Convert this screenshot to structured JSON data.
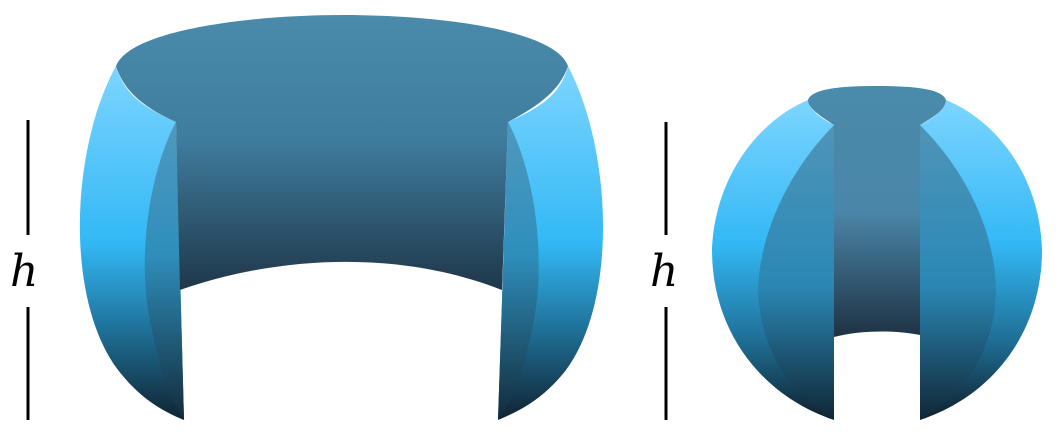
{
  "diagram": {
    "left_figure": {
      "height_label": "h"
    },
    "right_figure": {
      "height_label": "h"
    }
  },
  "colors": {
    "top_cap": "#4a8aab",
    "outer_light": "#7dd5ff",
    "outer_mid": "#33b8f5",
    "outer_dark": "#102331",
    "inner_top": "#4a8aab",
    "inner_bottom": "#203a4c",
    "rule": "#000000"
  }
}
